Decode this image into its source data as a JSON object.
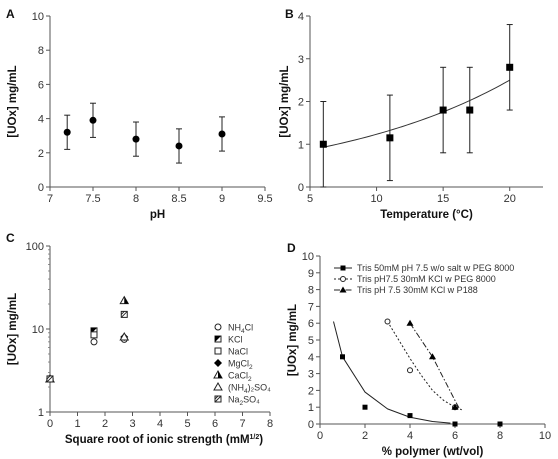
{
  "chart_data": [
    {
      "panel": "A",
      "type": "scatter",
      "xlabel": "pH",
      "ylabel": "[UOx] mg/mL",
      "xlim": [
        7,
        9.5
      ],
      "ylim": [
        0,
        10
      ],
      "xticks": [
        "7",
        "7.5",
        "8",
        "8.5",
        "9",
        "9.5"
      ],
      "yticks": [
        "0",
        "2",
        "4",
        "6",
        "8",
        "10"
      ],
      "series": [
        {
          "marker": "filled-circle",
          "x": [
            7.2,
            7.5,
            8.0,
            8.5,
            9.0
          ],
          "y": [
            3.2,
            3.9,
            2.8,
            2.4,
            3.1
          ],
          "error": [
            1.0,
            1.0,
            1.0,
            1.0,
            1.0
          ]
        }
      ]
    },
    {
      "panel": "B",
      "type": "scatter",
      "xlabel": "Temperature (°C)",
      "ylabel": "[UOx] mg/mL",
      "xlim": [
        5,
        22.5
      ],
      "ylim": [
        0,
        4
      ],
      "xticks": [
        "5",
        "10",
        "15",
        "20"
      ],
      "yticks": [
        "0",
        "1",
        "2",
        "3",
        "4"
      ],
      "series": [
        {
          "marker": "filled-square",
          "x": [
            6,
            11,
            15,
            17,
            20
          ],
          "y": [
            1.0,
            1.15,
            1.8,
            1.8,
            2.8
          ],
          "error": [
            1.0,
            1.0,
            1.0,
            1.0,
            1.0
          ]
        }
      ],
      "fit": {
        "type": "exponential",
        "x": [
          6,
          20
        ],
        "y": [
          0.93,
          2.5
        ]
      }
    },
    {
      "panel": "C",
      "type": "scatter",
      "xlabel": "Square root of ionic strength (mM",
      "xlabel_sup": "1/2",
      "xlabel_end": ")",
      "ylabel": "[UOx] mg/mL",
      "xlim": [
        0,
        8
      ],
      "ylim": [
        1,
        100
      ],
      "yscale": "log",
      "xticks": [
        "0",
        "1",
        "2",
        "3",
        "4",
        "5",
        "6",
        "7",
        "8"
      ],
      "yticks": [
        "1",
        "10",
        "100"
      ],
      "legend": [
        {
          "marker": "open-circle",
          "label": "NH",
          "sub": "4",
          "label_end": "Cl"
        },
        {
          "marker": "half-square",
          "label": "KCl",
          "sub": "",
          "label_end": ""
        },
        {
          "marker": "open-square",
          "label": "NaCl",
          "sub": "",
          "label_end": ""
        },
        {
          "marker": "filled-diamond",
          "label": "MgCl",
          "sub": "2",
          "label_end": ""
        },
        {
          "marker": "half-triangle",
          "label": "CaCl",
          "sub": "2",
          "label_end": ""
        },
        {
          "marker": "open-triangle",
          "label": "(NH",
          "sub": "4",
          "label_end": ")₂SO₄"
        },
        {
          "marker": "crossed-square",
          "label": "Na",
          "sub": "2",
          "label_end": "SO₄"
        }
      ],
      "series": [
        {
          "marker": "open-circle",
          "x": [
            0,
            1.6,
            2.7
          ],
          "y": [
            2.5,
            7.0,
            7.5
          ]
        },
        {
          "marker": "half-square",
          "x": [
            0,
            1.6
          ],
          "y": [
            2.5,
            9.5
          ]
        },
        {
          "marker": "open-square",
          "x": [
            0,
            1.6
          ],
          "y": [
            2.5,
            8.5
          ]
        },
        {
          "marker": "filled-diamond",
          "x": [
            0,
            2.7
          ],
          "y": [
            2.5,
            8.0
          ]
        },
        {
          "marker": "half-triangle",
          "x": [
            0,
            2.7
          ],
          "y": [
            2.5,
            22.0
          ]
        },
        {
          "marker": "open-triangle",
          "x": [
            0,
            2.7
          ],
          "y": [
            2.5,
            8.0
          ]
        },
        {
          "marker": "crossed-square",
          "x": [
            0,
            2.7
          ],
          "y": [
            2.5,
            15.0
          ]
        }
      ]
    },
    {
      "panel": "D",
      "type": "scatter",
      "xlabel": "% polymer (wt/vol)",
      "ylabel": "[UOx] mg/mL",
      "xlim": [
        0,
        10
      ],
      "ylim": [
        0,
        10
      ],
      "xticks": [
        "0",
        "2",
        "4",
        "6",
        "8",
        "10"
      ],
      "yticks": [
        "0",
        "1",
        "2",
        "3",
        "4",
        "5",
        "6",
        "7",
        "8",
        "9",
        "10"
      ],
      "legend": [
        {
          "marker": "filled-square",
          "line": "solid",
          "label": "Tris 50mM pH 7.5 w/o salt w PEG 8000"
        },
        {
          "marker": "open-circle",
          "line": "dotted",
          "label": "Tris pH7.5 30mM KCl w PEG 8000"
        },
        {
          "marker": "filled-triangle",
          "line": "dashdot",
          "label": "Tris pH 7.5 30mM KCl w P188"
        }
      ],
      "series": [
        {
          "marker": "filled-square",
          "line": "solid",
          "x": [
            1,
            2,
            4,
            6,
            8
          ],
          "y": [
            4.0,
            1.0,
            0.5,
            0.0,
            0.0
          ],
          "curve_x": [
            0.6,
            1,
            2,
            3,
            4,
            5,
            5.8
          ],
          "curve_y": [
            6.1,
            4.0,
            1.9,
            0.9,
            0.4,
            0.15,
            0.05
          ]
        },
        {
          "marker": "open-circle",
          "line": "dotted",
          "x": [
            3,
            4,
            6
          ],
          "y": [
            6.1,
            3.2,
            1.0
          ],
          "curve_x": [
            3,
            3.5,
            4,
            4.5,
            5,
            5.5,
            6,
            6.3
          ],
          "curve_y": [
            6.1,
            5.0,
            3.9,
            2.9,
            2.0,
            1.4,
            1.0,
            0.85
          ]
        },
        {
          "marker": "filled-triangle",
          "line": "dashdot",
          "x": [
            4,
            5,
            6
          ],
          "y": [
            6.0,
            4.0,
            1.0
          ],
          "curve_x": [
            4,
            4.5,
            5,
            5.5,
            6,
            6.2
          ],
          "curve_y": [
            6.0,
            5.0,
            4.0,
            2.7,
            1.4,
            0.9
          ]
        }
      ]
    }
  ]
}
